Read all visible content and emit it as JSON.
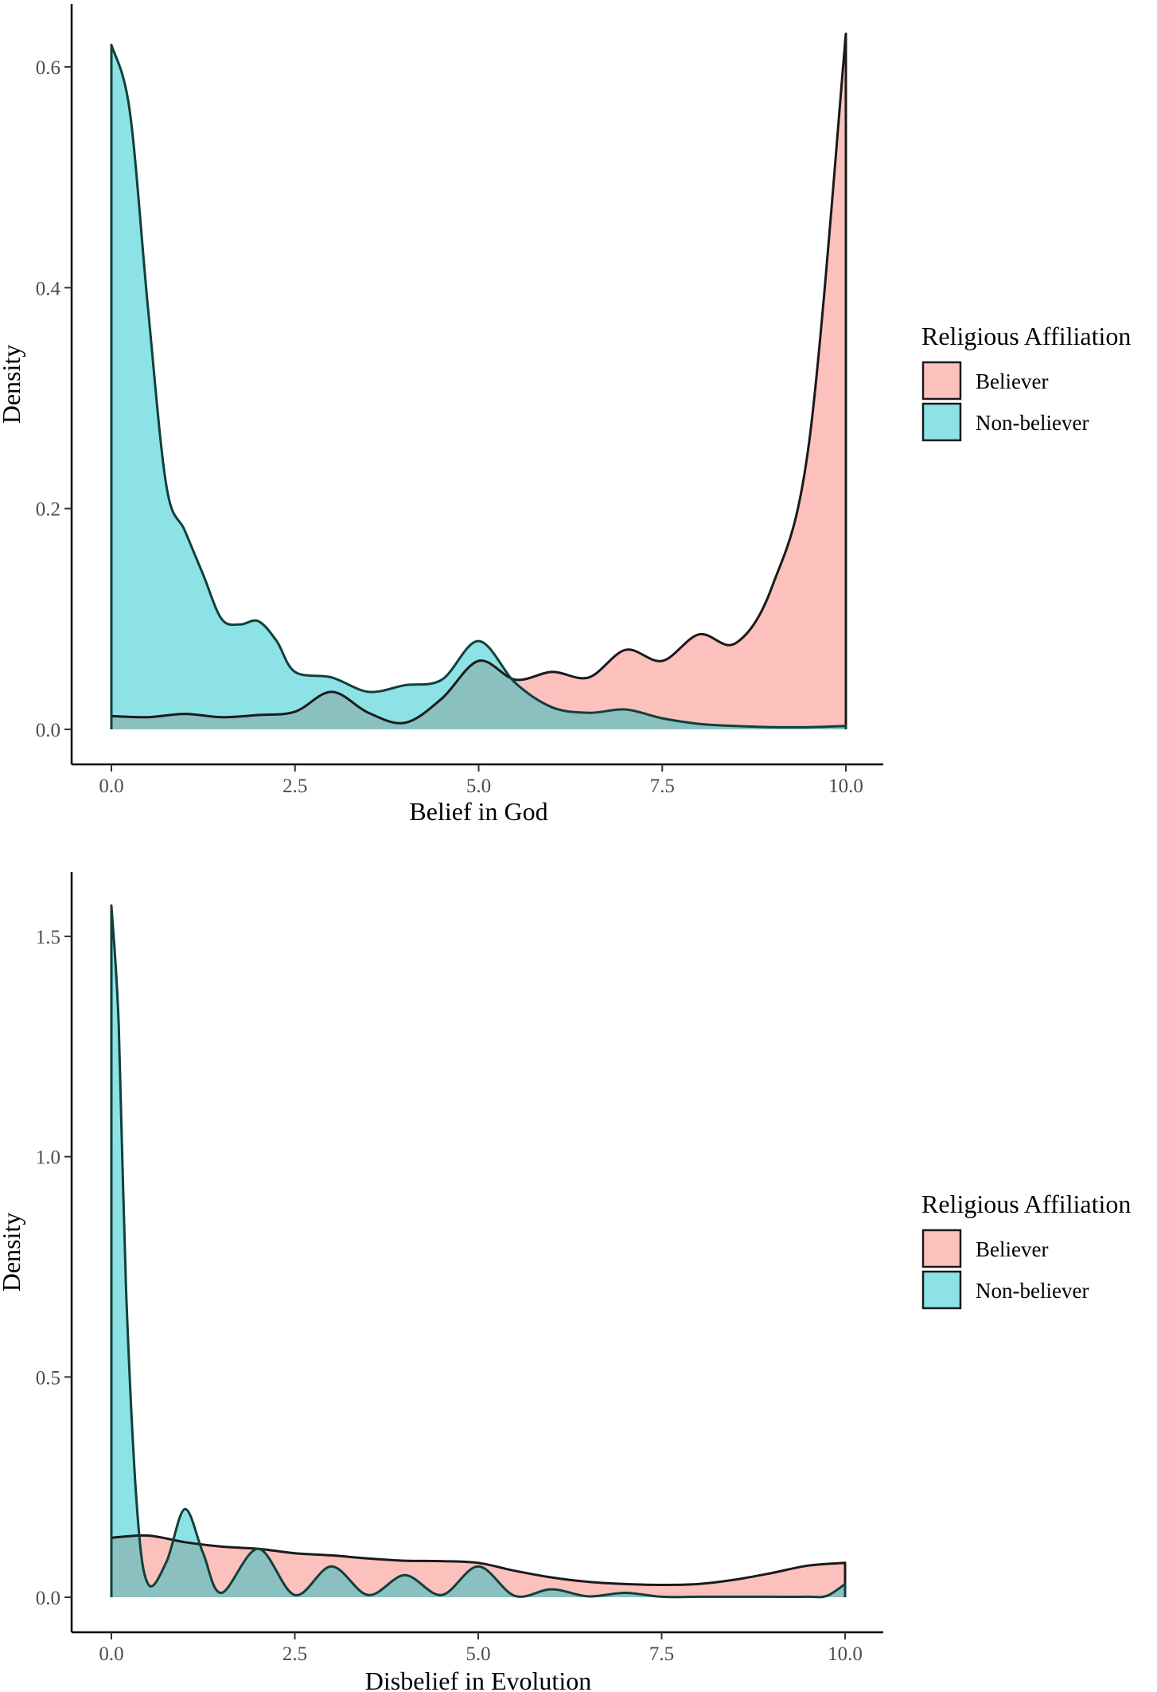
{
  "chart_data": [
    {
      "type": "area",
      "xlabel": "Belief in God",
      "ylabel": "Density",
      "xlim": [
        0,
        10
      ],
      "ylim": [
        0,
        0.65
      ],
      "xticks": [
        "0.0",
        "2.5",
        "5.0",
        "7.5",
        "10.0"
      ],
      "xtick_values": [
        0,
        2.5,
        5,
        7.5,
        10
      ],
      "yticks": [
        "0.0",
        "0.2",
        "0.4",
        "0.6"
      ],
      "ytick_values": [
        0,
        0.2,
        0.4,
        0.6
      ],
      "grid": false,
      "legend_placement": "right",
      "legend": {
        "title": "Religious Affiliation",
        "entries": [
          {
            "label": "Believer",
            "color": "#F8766D"
          },
          {
            "label": "Non-believer",
            "color": "#00BFC4"
          }
        ]
      },
      "series": [
        {
          "name": "Believer",
          "color": "#F8766D",
          "x": [
            0,
            0.5,
            1,
            1.5,
            2,
            2.5,
            3,
            3.5,
            4,
            4.5,
            5,
            5.5,
            6,
            6.5,
            7,
            7.5,
            8,
            8.5,
            9,
            9.5,
            10
          ],
          "y": [
            0.012,
            0.011,
            0.014,
            0.011,
            0.013,
            0.016,
            0.034,
            0.015,
            0.006,
            0.028,
            0.062,
            0.045,
            0.052,
            0.047,
            0.072,
            0.062,
            0.086,
            0.078,
            0.13,
            0.26,
            0.63
          ]
        },
        {
          "name": "Non-believer",
          "color": "#00BFC4",
          "x": [
            0,
            0.25,
            0.5,
            0.75,
            1,
            1.25,
            1.5,
            1.75,
            2,
            2.25,
            2.5,
            3,
            3.5,
            4,
            4.5,
            5,
            5.5,
            6,
            6.5,
            7,
            7.5,
            8,
            8.5,
            9,
            9.5,
            10
          ],
          "y": [
            0.62,
            0.56,
            0.38,
            0.22,
            0.18,
            0.14,
            0.1,
            0.095,
            0.098,
            0.08,
            0.052,
            0.047,
            0.034,
            0.04,
            0.045,
            0.08,
            0.042,
            0.02,
            0.015,
            0.018,
            0.01,
            0.005,
            0.003,
            0.002,
            0.002,
            0.003
          ]
        }
      ]
    },
    {
      "type": "area",
      "xlabel": "Disbelief in Evolution",
      "ylabel": "Density",
      "xlim": [
        0,
        10
      ],
      "ylim": [
        0,
        1.6
      ],
      "xticks": [
        "0.0",
        "2.5",
        "5.0",
        "7.5",
        "10.0"
      ],
      "xtick_values": [
        0,
        2.5,
        5,
        7.5,
        10
      ],
      "yticks": [
        "0.0",
        "0.5",
        "1.0",
        "1.5"
      ],
      "ytick_values": [
        0,
        0.5,
        1.0,
        1.5
      ],
      "grid": false,
      "legend_placement": "right",
      "legend": {
        "title": "Religious Affiliation",
        "entries": [
          {
            "label": "Believer",
            "color": "#F8766D"
          },
          {
            "label": "Non-believer",
            "color": "#00BFC4"
          }
        ]
      },
      "series": [
        {
          "name": "Believer",
          "color": "#F8766D",
          "x": [
            0,
            0.5,
            1,
            1.5,
            2,
            2.5,
            3,
            3.5,
            4,
            4.5,
            5,
            5.5,
            6,
            6.5,
            7,
            7.5,
            8,
            8.5,
            9,
            9.5,
            10
          ],
          "y": [
            0.135,
            0.14,
            0.125,
            0.115,
            0.11,
            0.1,
            0.095,
            0.088,
            0.083,
            0.082,
            0.078,
            0.06,
            0.045,
            0.035,
            0.03,
            0.028,
            0.03,
            0.04,
            0.055,
            0.072,
            0.078
          ]
        },
        {
          "name": "Non-believer",
          "color": "#00BFC4",
          "x": [
            0,
            0.1,
            0.2,
            0.35,
            0.5,
            0.75,
            1,
            1.25,
            1.5,
            2,
            2.5,
            3,
            3.5,
            4,
            4.5,
            5,
            5.5,
            6,
            6.5,
            7,
            7.5,
            8,
            8.5,
            9,
            9.5,
            9.75,
            10
          ],
          "y": [
            1.57,
            1.3,
            0.7,
            0.2,
            0.03,
            0.08,
            0.2,
            0.1,
            0.01,
            0.11,
            0.005,
            0.07,
            0.005,
            0.05,
            0.005,
            0.07,
            0.003,
            0.018,
            0.002,
            0.01,
            0.001,
            0.001,
            0.001,
            0.001,
            0.001,
            0.003,
            0.03
          ]
        }
      ]
    }
  ]
}
